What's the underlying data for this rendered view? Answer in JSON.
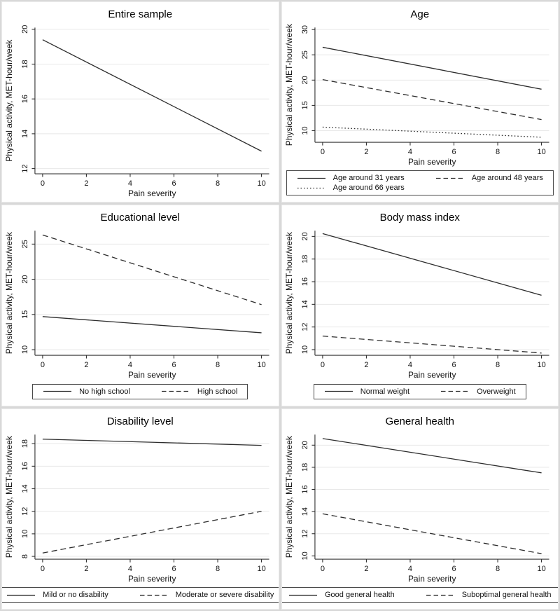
{
  "figure": {
    "xlabel": "Pain severity",
    "ylabel": "Physical activity, MET-hour/week"
  },
  "colors": {
    "line": "#2d2d2d",
    "grid": "#e8e8e8",
    "axis": "#303030",
    "panel_background": "#ffffff",
    "panel_border": "#ececec",
    "divider": "#d8d8d8",
    "text": "#111111"
  },
  "chart_data": [
    {
      "type": "line",
      "title": "Entire sample",
      "xlabel": "Pain severity",
      "ylabel": "Physical activity, MET-hour/week",
      "x": [
        0,
        10
      ],
      "xticks": [
        0,
        2,
        4,
        6,
        8,
        10
      ],
      "xlim": [
        -0.35,
        10.35
      ],
      "yticks": [
        12,
        14,
        16,
        18,
        20
      ],
      "ylim": [
        11.7,
        20.1
      ],
      "grid": "horizontal",
      "legend_position": "none",
      "series": [
        {
          "name": "",
          "dash": "solid",
          "values": [
            19.4,
            13.0
          ]
        }
      ]
    },
    {
      "type": "line",
      "title": "Age",
      "xlabel": "Pain severity",
      "ylabel": "Physical activity, MET-hour/week",
      "x": [
        0,
        10
      ],
      "xticks": [
        0,
        2,
        4,
        6,
        8,
        10
      ],
      "xlim": [
        -0.35,
        10.35
      ],
      "yticks": [
        10,
        15,
        20,
        25,
        30
      ],
      "ylim": [
        7.7,
        30.4
      ],
      "grid": "horizontal",
      "legend_position": "bottom",
      "legend_columns": 2,
      "series": [
        {
          "name": "Age around 31 years",
          "dash": "solid",
          "values": [
            26.5,
            18.2
          ]
        },
        {
          "name": "Age around 48 years",
          "dash": "dash",
          "values": [
            20.1,
            12.2
          ]
        },
        {
          "name": "Age around 66 years",
          "dash": "dot",
          "values": [
            10.7,
            8.7
          ]
        }
      ]
    },
    {
      "type": "line",
      "title": "Educational level",
      "xlabel": "Pain severity",
      "ylabel": "Physical activity, MET-hour/week",
      "x": [
        0,
        10
      ],
      "xticks": [
        0,
        2,
        4,
        6,
        8,
        10
      ],
      "xlim": [
        -0.35,
        10.35
      ],
      "yticks": [
        10,
        15,
        20,
        25
      ],
      "ylim": [
        9.2,
        26.9
      ],
      "grid": "horizontal",
      "legend_position": "bottom",
      "legend_columns": 2,
      "series": [
        {
          "name": "No high school",
          "dash": "solid",
          "values": [
            14.7,
            12.4
          ]
        },
        {
          "name": "High school",
          "dash": "dash",
          "values": [
            26.3,
            16.4
          ]
        }
      ]
    },
    {
      "type": "line",
      "title": "Body mass index",
      "xlabel": "Pain severity",
      "ylabel": "Physical activity, MET-hour/week",
      "x": [
        0,
        10
      ],
      "xticks": [
        0,
        2,
        4,
        6,
        8,
        10
      ],
      "xlim": [
        -0.35,
        10.35
      ],
      "yticks": [
        10,
        12,
        14,
        16,
        18,
        20
      ],
      "ylim": [
        9.5,
        20.5
      ],
      "grid": "horizontal",
      "legend_position": "bottom",
      "legend_columns": 2,
      "series": [
        {
          "name": "Normal weight",
          "dash": "solid",
          "values": [
            20.25,
            14.8
          ]
        },
        {
          "name": "Overweight",
          "dash": "dash",
          "values": [
            11.2,
            9.7
          ]
        }
      ]
    },
    {
      "type": "line",
      "title": "Disability level",
      "xlabel": "Pain severity",
      "ylabel": "Physical activity, MET-hour/week",
      "x": [
        0,
        10
      ],
      "xticks": [
        0,
        2,
        4,
        6,
        8,
        10
      ],
      "xlim": [
        -0.35,
        10.35
      ],
      "yticks": [
        8,
        10,
        12,
        14,
        16,
        18
      ],
      "ylim": [
        7.75,
        18.8
      ],
      "grid": "horizontal",
      "legend_position": "bottom",
      "legend_columns": 2,
      "series": [
        {
          "name": "Mild or no disability",
          "dash": "solid",
          "values": [
            18.4,
            17.85
          ]
        },
        {
          "name": "Moderate or severe disability",
          "dash": "dash",
          "values": [
            8.3,
            12.0
          ]
        }
      ]
    },
    {
      "type": "line",
      "title": "General health",
      "xlabel": "Pain severity",
      "ylabel": "Physical activity, MET-hour/week",
      "x": [
        0,
        10
      ],
      "xticks": [
        0,
        2,
        4,
        6,
        8,
        10
      ],
      "xlim": [
        -0.35,
        10.35
      ],
      "yticks": [
        10,
        12,
        14,
        16,
        18,
        20
      ],
      "ylim": [
        9.7,
        20.95
      ],
      "grid": "horizontal",
      "legend_position": "bottom",
      "legend_columns": 2,
      "series": [
        {
          "name": "Good general health",
          "dash": "solid",
          "values": [
            20.6,
            17.5
          ]
        },
        {
          "name": "Suboptimal general health",
          "dash": "dash",
          "values": [
            13.8,
            10.2
          ]
        }
      ]
    }
  ]
}
